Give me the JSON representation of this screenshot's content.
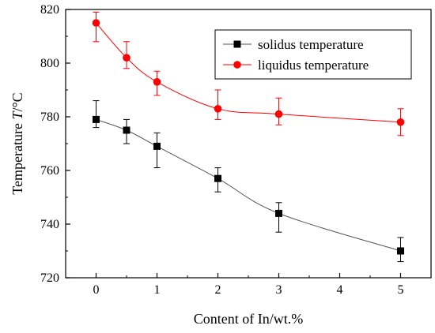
{
  "chart_data": {
    "type": "line",
    "xlabel": "Content of In/wt.%",
    "ylabel_prefix": "Temperature ",
    "ylabel_italic": "T",
    "ylabel_suffix": "/°C",
    "xlim": [
      -0.5,
      5.5
    ],
    "ylim": [
      720,
      820
    ],
    "xticks": [
      0,
      1,
      2,
      3,
      4,
      5
    ],
    "yticks": [
      720,
      740,
      760,
      780,
      800,
      820
    ],
    "legend_position": "top-right",
    "x": [
      0,
      0.5,
      1,
      2,
      3,
      5
    ],
    "series": [
      {
        "name": "solidus temperature",
        "color": "#000000",
        "marker": "square",
        "values": [
          779,
          775,
          769,
          757,
          744,
          730
        ],
        "err_low": [
          3,
          5,
          8,
          5,
          7,
          4
        ],
        "err_high": [
          7,
          4,
          5,
          4,
          4,
          5
        ]
      },
      {
        "name": "liquidus temperature",
        "color": "#ff0000",
        "marker": "circle",
        "values": [
          815,
          802,
          793,
          783,
          781,
          778
        ],
        "err_low": [
          7,
          4,
          5,
          4,
          4,
          5
        ],
        "err_high": [
          4,
          6,
          4,
          7,
          6,
          5
        ]
      }
    ]
  }
}
